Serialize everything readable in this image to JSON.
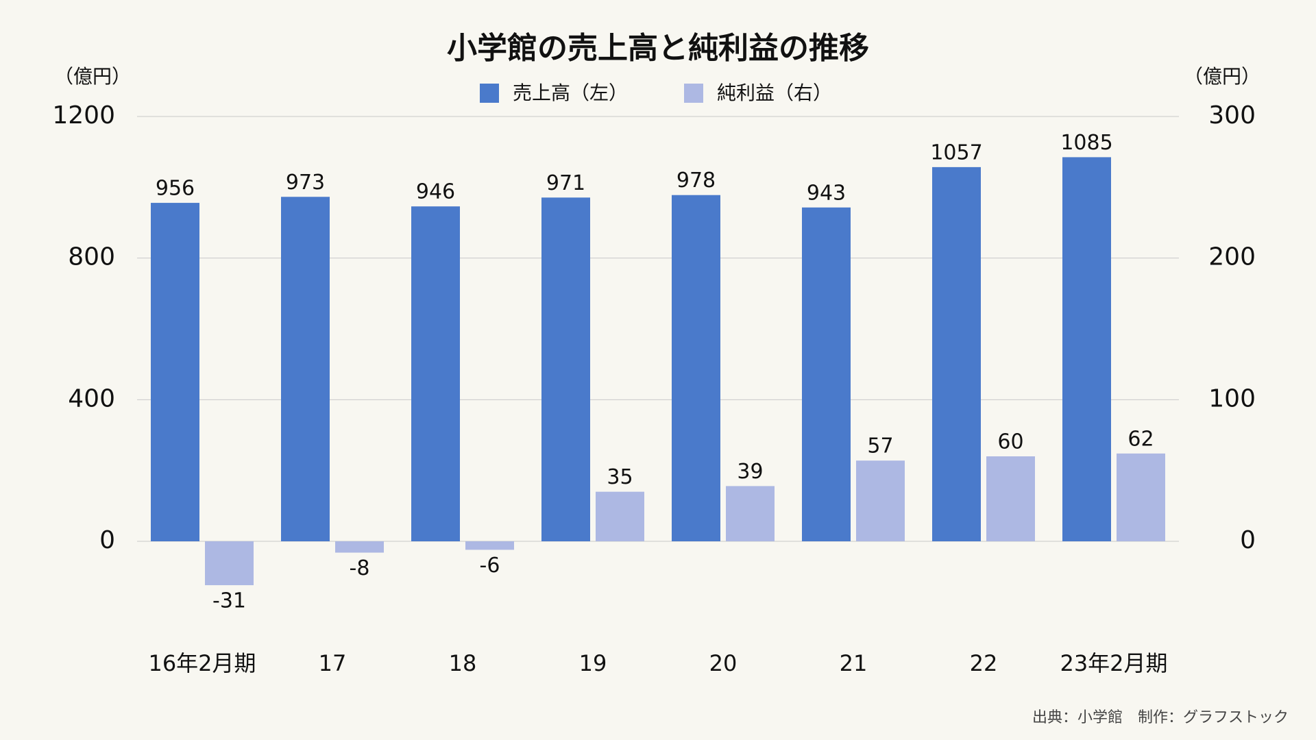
{
  "chart_data": {
    "type": "bar",
    "title": "小学館の売上高と純利益の推移",
    "y_unit": "（億円）",
    "y2_unit": "（億円）",
    "source": "出典：小学館　制作：グラフストック",
    "categories": [
      "16年2月期",
      "17",
      "18",
      "19",
      "20",
      "21",
      "22",
      "23年2月期"
    ],
    "series": [
      {
        "name": "売上高（左）",
        "color": "#4a7acb",
        "values": [
          956,
          973,
          946,
          971,
          978,
          943,
          1057,
          1085
        ]
      },
      {
        "name": "純利益（右）",
        "color": "#adb8e3",
        "axis": "y2",
        "values": [
          -31,
          -8,
          -6,
          35,
          39,
          57,
          60,
          62
        ]
      }
    ],
    "ylim": [
      -240,
      1200
    ],
    "yticks": [
      0,
      400,
      800,
      1200
    ],
    "y2lim": [
      -60,
      300
    ],
    "y2ticks": [
      0,
      100,
      200,
      300
    ],
    "grid": true
  }
}
